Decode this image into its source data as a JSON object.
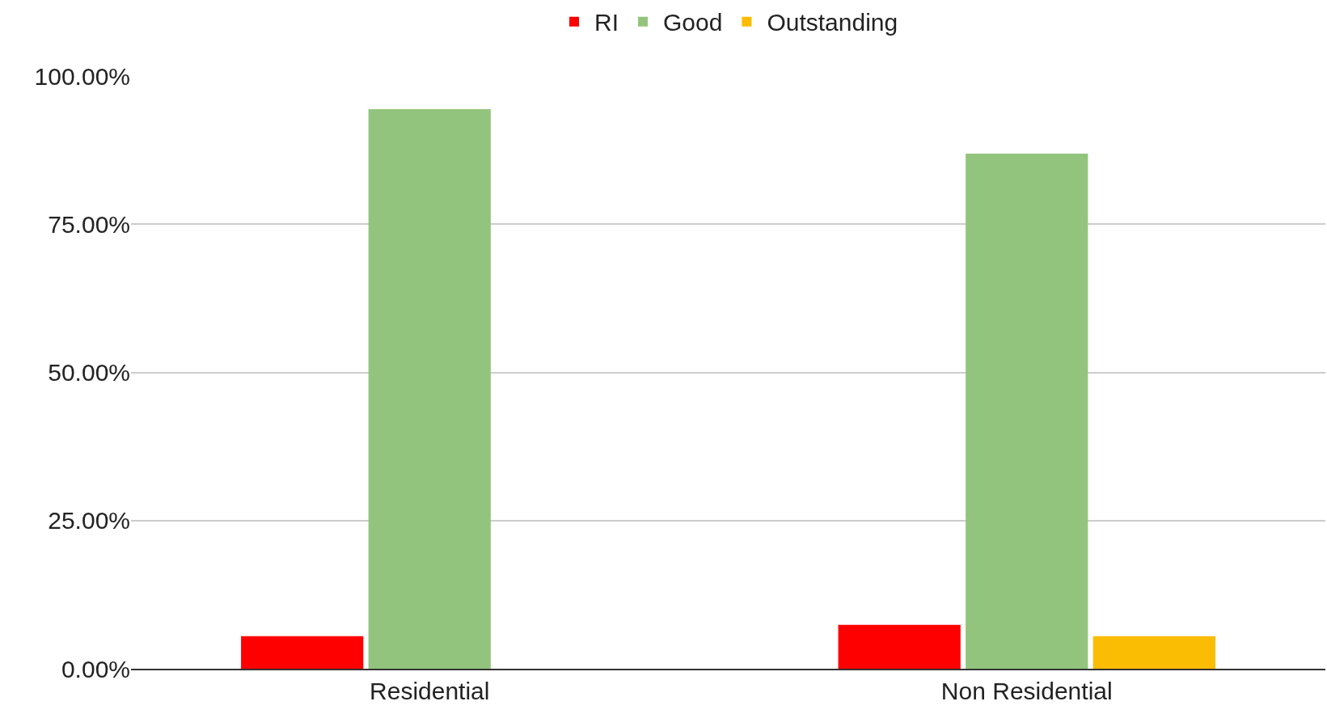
{
  "chart_data": {
    "type": "bar",
    "categories": [
      "Residential",
      "Non Residential"
    ],
    "series": [
      {
        "name": "RI",
        "color": "#ff0000",
        "values": [
          5.5,
          7.4
        ]
      },
      {
        "name": "Good",
        "color": "#93c47d",
        "values": [
          94.4,
          86.9
        ]
      },
      {
        "name": "Outstanding",
        "color": "#fbbc04",
        "values": [
          0,
          5.5
        ]
      }
    ],
    "ylim": [
      0,
      100
    ],
    "yticks": [
      {
        "value": 0,
        "label": "0.00%"
      },
      {
        "value": 25,
        "label": "25.00%"
      },
      {
        "value": 50,
        "label": "50.00%"
      },
      {
        "value": 75,
        "label": "75.00%"
      },
      {
        "value": 100,
        "label": "100.00%"
      }
    ],
    "grid": "y",
    "legend": "top"
  }
}
